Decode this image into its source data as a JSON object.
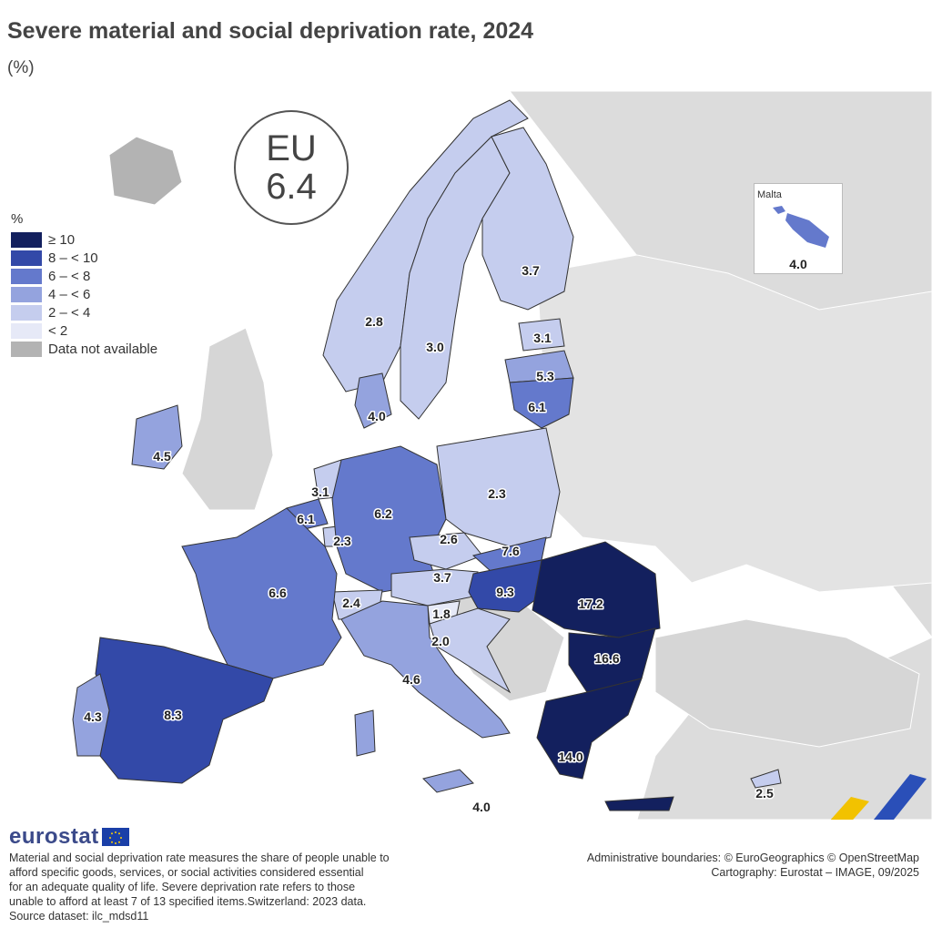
{
  "header": {
    "title": "Severe material and social deprivation rate, 2024",
    "unit": "(%)"
  },
  "eu_badge": {
    "label": "EU",
    "value": "6.4"
  },
  "legend": {
    "title": "%",
    "items": [
      {
        "label": "≥ 10",
        "color": "#13205e"
      },
      {
        "label": "8 – < 10",
        "color": "#3349a8"
      },
      {
        "label": "6 – < 8",
        "color": "#6479cc"
      },
      {
        "label": "4 – < 6",
        "color": "#94a3de"
      },
      {
        "label": "2 – < 4",
        "color": "#c5cdee"
      },
      {
        "label": "< 2",
        "color": "#e6e9f7"
      },
      {
        "label": "Data not available",
        "color": "#b3b3b3"
      }
    ]
  },
  "countries": {
    "FI": "3.7",
    "NO": "2.8",
    "SE": "3.0",
    "EE": "3.1",
    "LV": "5.3",
    "LT": "6.1",
    "DK": "4.0",
    "IE": "4.5",
    "NL": "3.1",
    "BE": "6.1",
    "LU": "2.3",
    "DE": "6.2",
    "PL": "2.3",
    "CZ": "2.6",
    "SK": "7.6",
    "AT": "3.7",
    "HU": "9.3",
    "RO": "17.2",
    "BG": "16.6",
    "SI": "1.8",
    "HR": "2.0",
    "CH": "2.4",
    "FR": "6.6",
    "IT": "4.6",
    "ES": "8.3",
    "PT": "4.3",
    "EL": "14.0",
    "CY": "2.5",
    "MT_near": "4.0"
  },
  "malta_inset": {
    "name": "Malta",
    "value": "4.0"
  },
  "footer": {
    "logo_text": "eurostat",
    "note": [
      "Material and social deprivation rate measures the share of people unable to",
      "afford specific goods, services, or social activities considered essential",
      "for an adequate quality of life. Severe deprivation rate refers to those",
      "unable to afford at least 7 of 13 specified items.Switzerland: 2023 data.",
      "Source dataset: ilc_mdsd11"
    ],
    "credits": [
      "Administrative boundaries: © EuroGeographics © OpenStreetMap",
      "Cartography: Eurostat – IMAGE, 09/2025"
    ]
  }
}
